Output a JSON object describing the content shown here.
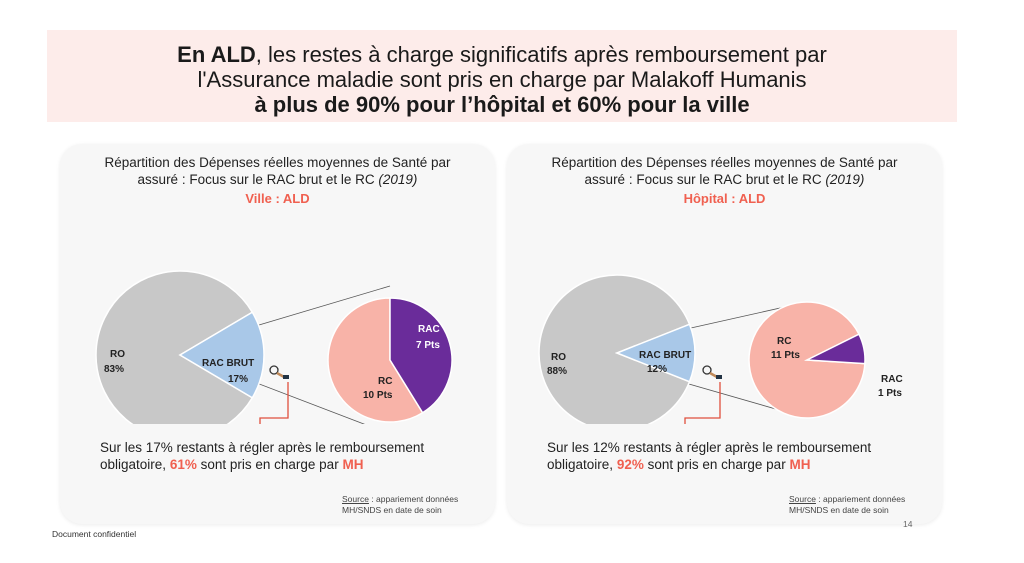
{
  "header": {
    "line1_bold": "En ALD",
    "line1_rest": ", les restes à charge significatifs après remboursement par",
    "line2": "l'Assurance maladie sont pris en charge par Malakoff Humanis",
    "line3": "à plus de 90% pour l’hôpital et 60% pour la ville"
  },
  "cards": [
    {
      "title": "Répartition des Dépenses réelles moyennes de Santé par",
      "title_line2": "assuré : Focus sur le RAC brut et le RC",
      "year": "(2019)",
      "subtitle": "Ville : ALD",
      "summary_pre": "Sur les 17% restants à régler après le remboursement obligatoire,",
      "summary_pct": "61%",
      "summary_mid": "sont pris en charge par",
      "summary_mh": "MH",
      "source_label": "Source",
      "source_text": ": appariement données MH/SNDS en date de soin"
    },
    {
      "title": "Répartition des Dépenses réelles moyennes de Santé par",
      "title_line2": "assuré : Focus sur le RAC brut et le RC",
      "year": "(2019)",
      "subtitle": "Hôpital : ALD",
      "summary_pre": "Sur les 12% restants à régler après le remboursement obligatoire,",
      "summary_pct": "92%",
      "summary_mid": "sont pris en charge par",
      "summary_mh": "MH",
      "source_label": "Source",
      "source_text": ": appariement données MH/SNDS en date de soin"
    }
  ],
  "chart_data": [
    {
      "type": "pie",
      "title": "Ville : ALD",
      "main_pie": [
        {
          "label": "RO",
          "value_label": "83%",
          "value": 83,
          "color": "#c8c8c8"
        },
        {
          "label": "RAC BRUT",
          "value_label": "17%",
          "value": 17,
          "color": "#a9c8e8"
        }
      ],
      "detail_pie": [
        {
          "label": "RC",
          "value_label": "10 Pts",
          "value": 10,
          "color": "#f8b3a8"
        },
        {
          "label": "RAC",
          "value_label": "7 Pts",
          "value": 7,
          "color": "#6a2c9a"
        }
      ]
    },
    {
      "type": "pie",
      "title": "Hôpital : ALD",
      "main_pie": [
        {
          "label": "RO",
          "value_label": "88%",
          "value": 88,
          "color": "#c8c8c8"
        },
        {
          "label": "RAC BRUT",
          "value_label": "12%",
          "value": 12,
          "color": "#a9c8e8"
        }
      ],
      "detail_pie": [
        {
          "label": "RC",
          "value_label": "11 Pts",
          "value": 11,
          "color": "#f8b3a8"
        },
        {
          "label": "RAC",
          "value_label": "1 Pts",
          "value": 1,
          "color": "#6a2c9a"
        }
      ]
    }
  ],
  "colors": {
    "accent": "#f06050",
    "banner": "#fdecea"
  },
  "footer": {
    "confidential": "Document confidentiel",
    "page": "14"
  }
}
